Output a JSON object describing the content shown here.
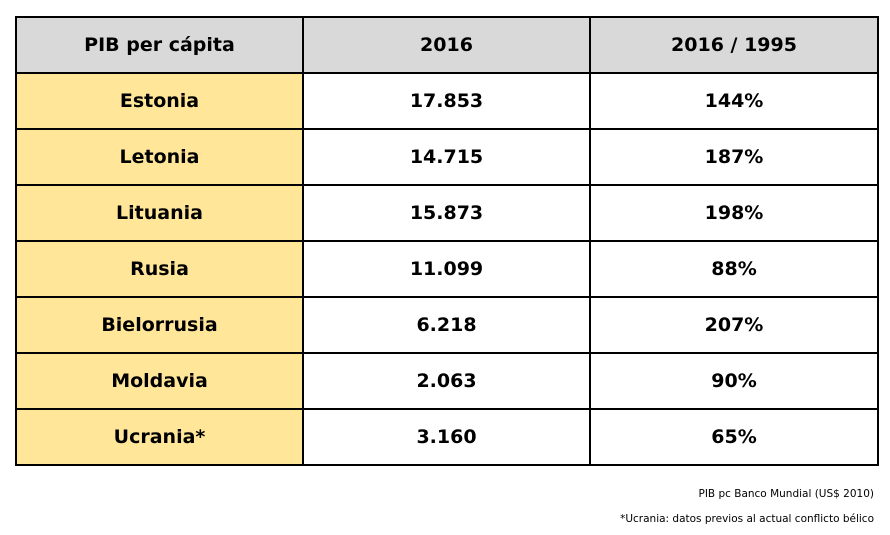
{
  "chart_data": {
    "type": "table",
    "columns": [
      "PIB per cápita",
      "2016",
      "2016 / 1995"
    ],
    "rows": [
      [
        "Estonia",
        "17.853",
        "144%"
      ],
      [
        "Letonia",
        "14.715",
        "187%"
      ],
      [
        "Lituania",
        "15.873",
        "198%"
      ],
      [
        "Rusia",
        "11.099",
        "88%"
      ],
      [
        "Bielorrusia",
        "6.218",
        "207%"
      ],
      [
        "Moldavia",
        "2.063",
        "90%"
      ],
      [
        "Ucrania*",
        "3.160",
        "65%"
      ]
    ],
    "header_color": "#d9d9d9",
    "label_column_color": "#ffe699"
  },
  "notes": {
    "source": "PIB pc Banco Mundial (US$ 2010)",
    "footnote": "*Ucrania: datos  previos al actual conflicto bélico"
  }
}
